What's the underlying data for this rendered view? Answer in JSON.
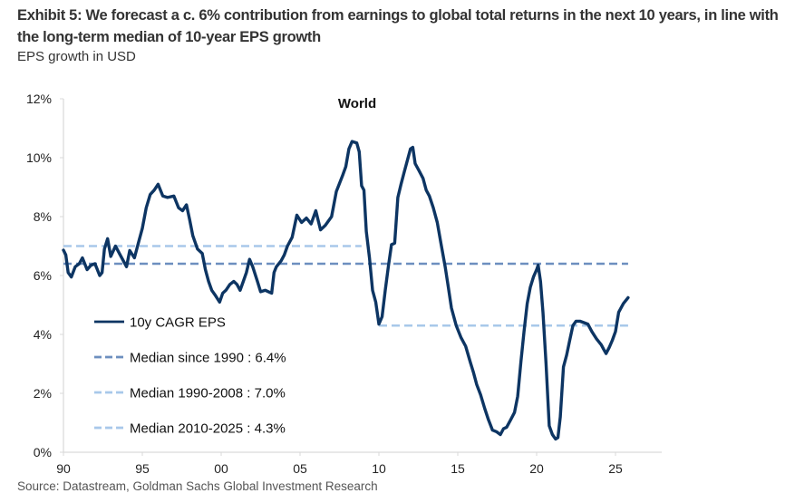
{
  "header": {
    "title": "Exhibit 5: We forecast a c. 6% contribution from earnings to global total returns in the next 10 years, in line with the long-term median of 10-year EPS growth",
    "subtitle": "EPS growth in USD"
  },
  "footer": {
    "source": "Source: Datastream, Goldman Sachs Global Investment Research"
  },
  "chart_data": {
    "type": "line",
    "title": "World",
    "xlabel": "",
    "ylabel": "",
    "xlim": [
      1990,
      2027
    ],
    "ylim": [
      0,
      12
    ],
    "grid": false,
    "legend_position": "bottom-left",
    "x_ticks": [
      {
        "value": 1990,
        "label": "90"
      },
      {
        "value": 1995,
        "label": "95"
      },
      {
        "value": 2000,
        "label": "00"
      },
      {
        "value": 2005,
        "label": "05"
      },
      {
        "value": 2010,
        "label": "10"
      },
      {
        "value": 2015,
        "label": "15"
      },
      {
        "value": 2020,
        "label": "20"
      },
      {
        "value": 2025,
        "label": "25"
      }
    ],
    "y_ticks": [
      {
        "value": 0,
        "label": "0%"
      },
      {
        "value": 2,
        "label": "2%"
      },
      {
        "value": 4,
        "label": "4%"
      },
      {
        "value": 6,
        "label": "6%"
      },
      {
        "value": 8,
        "label": "8%"
      },
      {
        "value": 10,
        "label": "10%"
      },
      {
        "value": 12,
        "label": "12%"
      }
    ],
    "series": [
      {
        "name": "10y CAGR EPS",
        "style": "solid",
        "color": "#0d3563",
        "x": [
          1990.0,
          1990.15,
          1990.3,
          1990.5,
          1990.75,
          1991.0,
          1991.2,
          1991.5,
          1991.75,
          1992.0,
          1992.3,
          1992.45,
          1992.6,
          1992.8,
          1993.0,
          1993.3,
          1993.6,
          1993.8,
          1994.0,
          1994.2,
          1994.5,
          1994.75,
          1995.0,
          1995.25,
          1995.5,
          1995.75,
          1996.0,
          1996.3,
          1996.6,
          1997.0,
          1997.3,
          1997.55,
          1997.8,
          1998.0,
          1998.2,
          1998.5,
          1998.8,
          1999.0,
          1999.2,
          1999.4,
          1999.6,
          1999.9,
          2000.1,
          2000.3,
          2000.55,
          2000.8,
          2001.0,
          2001.2,
          2001.4,
          2001.6,
          2001.8,
          2002.0,
          2002.3,
          2002.5,
          2002.8,
          2003.0,
          2003.2,
          2003.35,
          2003.5,
          2003.8,
          2004.0,
          2004.2,
          2004.5,
          2004.8,
          2005.1,
          2005.4,
          2005.7,
          2006.0,
          2006.3,
          2006.6,
          2007.0,
          2007.3,
          2007.7,
          2007.9,
          2008.1,
          2008.3,
          2008.6,
          2008.75,
          2008.9,
          2009.05,
          2009.2,
          2009.4,
          2009.6,
          2009.8,
          2010.0,
          2010.2,
          2010.4,
          2010.6,
          2010.8,
          2011.0,
          2011.2,
          2011.4,
          2011.6,
          2011.8,
          2012.0,
          2012.15,
          2012.3,
          2012.55,
          2012.8,
          2013.0,
          2013.2,
          2013.45,
          2013.7,
          2013.95,
          2014.2,
          2014.4,
          2014.6,
          2014.9,
          2015.2,
          2015.5,
          2015.8,
          2016.0,
          2016.2,
          2016.45,
          2016.7,
          2016.95,
          2017.2,
          2017.45,
          2017.7,
          2017.9,
          2018.1,
          2018.35,
          2018.6,
          2018.8,
          2019.0,
          2019.2,
          2019.4,
          2019.6,
          2019.8,
          2020.0,
          2020.1,
          2020.25,
          2020.4,
          2020.6,
          2020.8,
          2021.0,
          2021.2,
          2021.35,
          2021.5,
          2021.7,
          2021.9,
          2022.1,
          2022.3,
          2022.5,
          2022.75,
          2023.0,
          2023.25,
          2023.5,
          2023.8,
          2024.1,
          2024.25,
          2024.4,
          2024.6,
          2024.8,
          2025.0,
          2025.2,
          2025.5,
          2025.8
        ],
        "y": [
          6.86,
          6.7,
          6.1,
          5.95,
          6.3,
          6.4,
          6.6,
          6.2,
          6.35,
          6.4,
          6.0,
          6.1,
          6.9,
          7.25,
          6.65,
          7.0,
          6.7,
          6.5,
          6.3,
          6.85,
          6.6,
          7.1,
          7.6,
          8.3,
          8.75,
          8.9,
          9.1,
          8.7,
          8.65,
          8.7,
          8.3,
          8.2,
          8.4,
          7.9,
          7.35,
          6.9,
          6.75,
          6.2,
          5.8,
          5.5,
          5.35,
          5.1,
          5.4,
          5.5,
          5.7,
          5.8,
          5.7,
          5.5,
          5.8,
          6.1,
          6.55,
          6.3,
          5.8,
          5.45,
          5.5,
          5.45,
          5.4,
          6.1,
          6.3,
          6.5,
          6.7,
          7.0,
          7.3,
          8.05,
          7.8,
          7.95,
          7.75,
          8.2,
          7.55,
          7.7,
          8.0,
          8.85,
          9.4,
          9.7,
          10.3,
          10.55,
          10.5,
          10.2,
          9.05,
          8.9,
          7.5,
          6.6,
          5.5,
          5.1,
          4.35,
          4.6,
          5.5,
          6.3,
          7.05,
          7.1,
          8.65,
          9.1,
          9.5,
          9.9,
          10.3,
          10.35,
          9.8,
          9.55,
          9.3,
          8.9,
          8.7,
          8.3,
          7.8,
          7.05,
          6.3,
          5.6,
          4.9,
          4.3,
          3.9,
          3.6,
          3.05,
          2.7,
          2.3,
          1.95,
          1.5,
          1.1,
          0.75,
          0.7,
          0.6,
          0.8,
          0.85,
          1.1,
          1.35,
          1.9,
          3.05,
          4.1,
          5.05,
          5.6,
          5.95,
          6.2,
          6.35,
          5.8,
          4.75,
          3.0,
          0.9,
          0.6,
          0.45,
          0.5,
          1.2,
          2.9,
          3.3,
          3.8,
          4.3,
          4.45,
          4.45,
          4.4,
          4.35,
          4.1,
          3.85,
          3.65,
          3.5,
          3.35,
          3.55,
          3.8,
          4.1,
          4.75,
          5.05,
          5.25
        ]
      },
      {
        "name": "Median since 1990 : 6.4%",
        "style": "dashed",
        "color": "#6d8fbf",
        "value": 6.4,
        "x_range": [
          1990,
          2025.8
        ]
      },
      {
        "name": "Median 1990-2008 : 7.0%",
        "style": "dashed",
        "color": "#a8c8ea",
        "value": 7.0,
        "x_range": [
          1990,
          2008.9
        ]
      },
      {
        "name": "Median 2010-2025 : 4.3%",
        "style": "dashed",
        "color": "#a8c8ea",
        "value": 4.3,
        "x_range": [
          2010,
          2025.8
        ]
      }
    ]
  }
}
